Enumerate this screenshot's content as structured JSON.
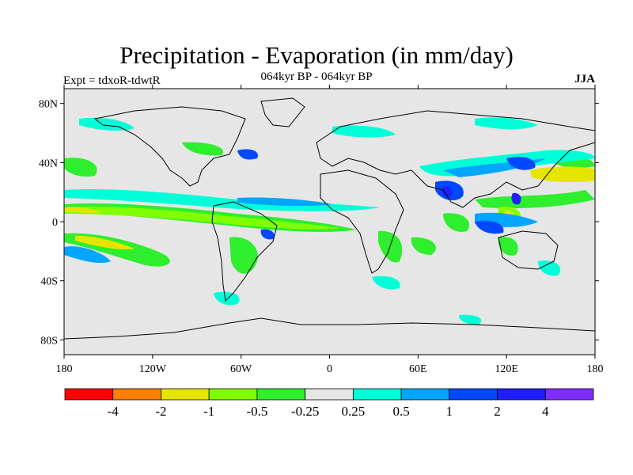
{
  "title": "Precipitation - Evaporation (in mm/day)",
  "expt_label": "Expt = tdxoR-tdwtR",
  "period_label": "064kyr BP - 064kyr BP",
  "season_label": "JJA",
  "lat_ticks": [
    {
      "value": 80,
      "label": "80N"
    },
    {
      "value": 40,
      "label": "40N"
    },
    {
      "value": 0,
      "label": "0"
    },
    {
      "value": -40,
      "label": "40S"
    },
    {
      "value": -80,
      "label": "80S"
    }
  ],
  "lon_ticks": [
    {
      "value": -180,
      "label": "180"
    },
    {
      "value": -120,
      "label": "120W"
    },
    {
      "value": -60,
      "label": "60W"
    },
    {
      "value": 0,
      "label": "0"
    },
    {
      "value": 60,
      "label": "60E"
    },
    {
      "value": 120,
      "label": "120E"
    },
    {
      "value": 180,
      "label": "180"
    }
  ],
  "colorbar": {
    "colors": [
      "#ff0000",
      "#ff7f00",
      "#e5e500",
      "#80ff00",
      "#2eee2e",
      "#e6e6e6",
      "#00ffd9",
      "#00a6ff",
      "#0048ff",
      "#1e1eff",
      "#7f2eff"
    ],
    "labels": [
      "-4",
      "-2",
      "-1",
      "-0.5",
      "-0.25",
      "0.25",
      "0.5",
      "1",
      "2",
      "4"
    ]
  },
  "colors": {
    "background": "#e6e6e6",
    "coast": "#000000"
  }
}
